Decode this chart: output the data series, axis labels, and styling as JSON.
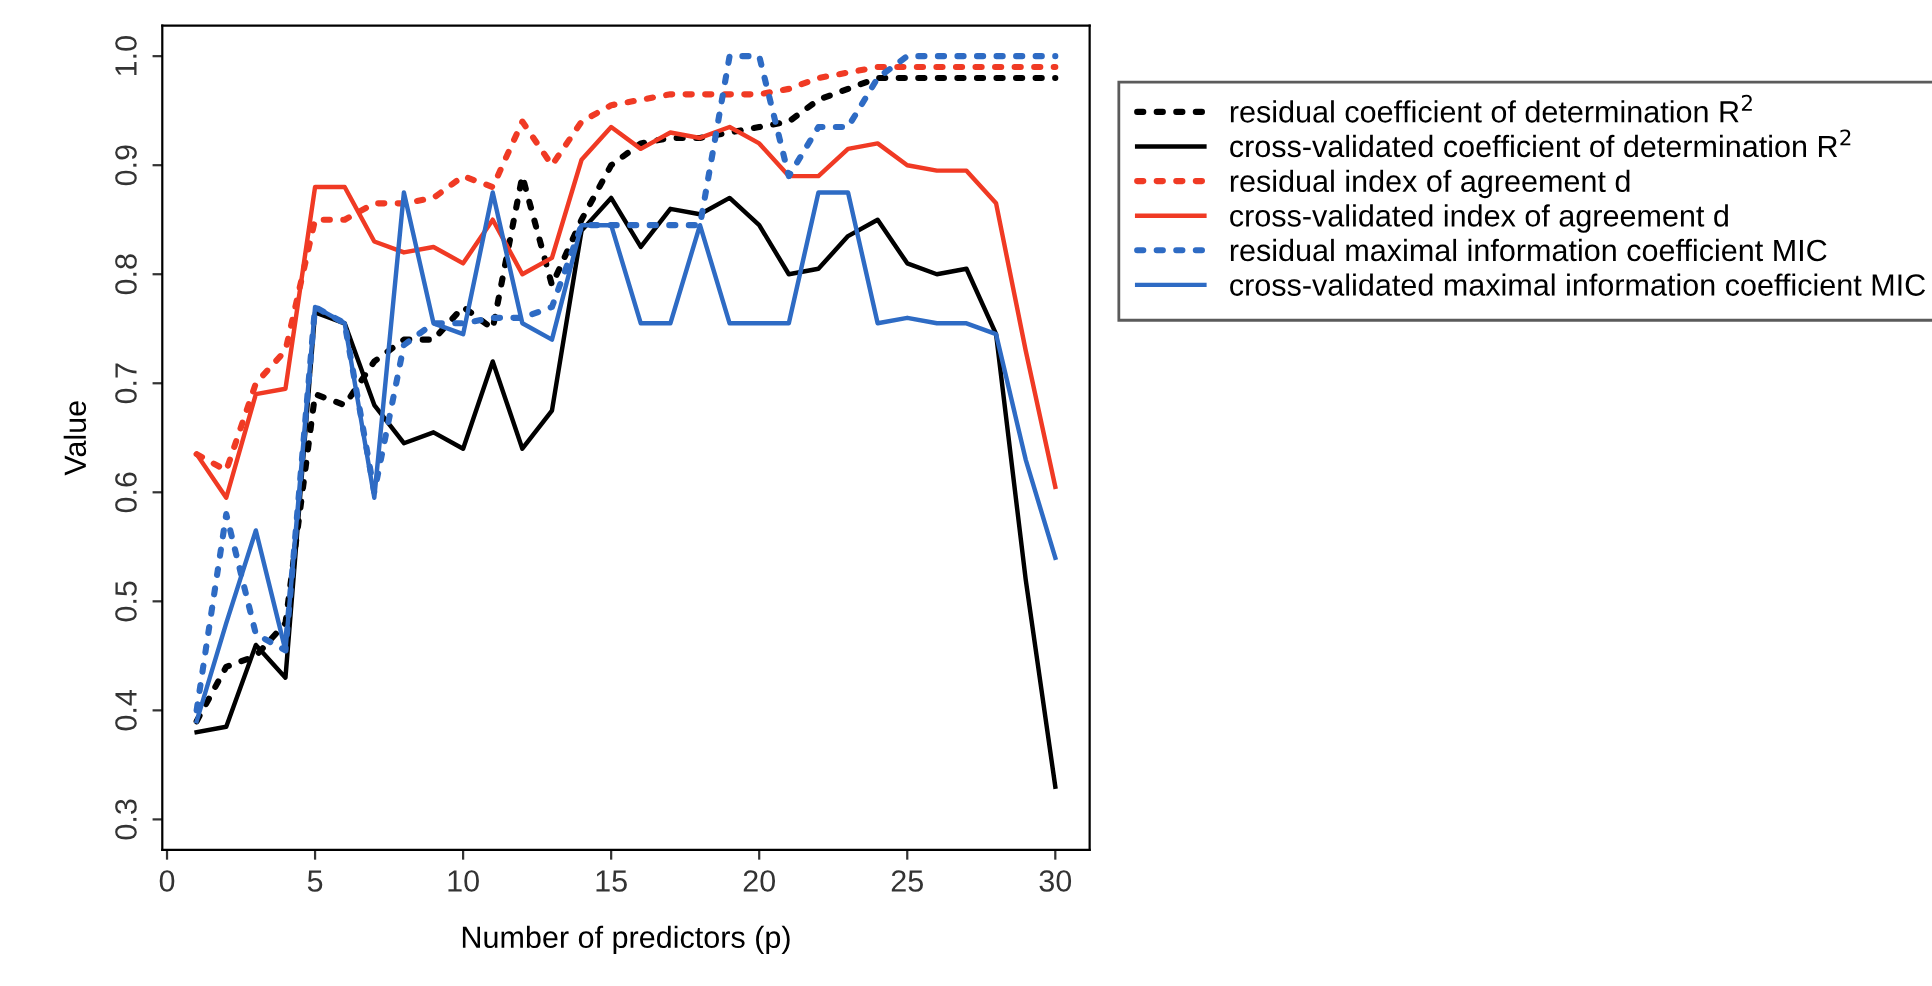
{
  "chart_data": {
    "type": "line",
    "xlabel": "Number of predictors (p)",
    "ylabel": "Value",
    "x": [
      1,
      2,
      3,
      4,
      5,
      6,
      7,
      8,
      9,
      10,
      11,
      12,
      13,
      14,
      15,
      16,
      17,
      18,
      19,
      20,
      21,
      22,
      23,
      24,
      25,
      26,
      27,
      28,
      29,
      30
    ],
    "xlim": [
      -0.16,
      31.16
    ],
    "xticks": [
      0,
      5,
      10,
      15,
      20,
      25,
      30
    ],
    "ylim": [
      0.272,
      1.028
    ],
    "yticks": [
      0.3,
      0.4,
      0.5,
      0.6,
      0.7,
      0.8,
      0.9,
      {
        "value": 1,
        "label": "1.0"
      }
    ],
    "grid": false,
    "legend": "right",
    "marker": "none",
    "series": [
      {
        "name": "residual coefficient of determination R$^{2}$",
        "color": "#000000",
        "line_style": "dotted",
        "values": [
          0.39,
          0.44,
          0.45,
          0.48,
          0.69,
          0.68,
          0.72,
          0.74,
          0.74,
          0.77,
          0.75,
          0.89,
          0.79,
          0.85,
          0.9,
          0.92,
          0.925,
          0.925,
          0.93,
          0.935,
          0.94,
          0.96,
          0.97,
          0.98,
          0.98,
          0.98,
          0.98,
          0.98,
          0.98,
          0.98
        ]
      },
      {
        "name": "cross-validated coefficient of determination R$^{2}$",
        "color": "#000000",
        "line_style": "solid",
        "values": [
          0.38,
          0.385,
          0.46,
          0.43,
          0.765,
          0.755,
          0.68,
          0.645,
          0.655,
          0.64,
          0.72,
          0.64,
          0.675,
          0.84,
          0.87,
          0.825,
          0.86,
          0.855,
          0.87,
          0.845,
          0.8,
          0.805,
          0.835,
          0.85,
          0.81,
          0.8,
          0.805,
          0.745,
          0.52,
          0.33
        ]
      },
      {
        "name": "residual index of agreement d",
        "color": "#f03a24",
        "line_style": "dotted",
        "values": [
          0.635,
          0.62,
          0.7,
          0.73,
          0.85,
          0.85,
          0.865,
          0.865,
          0.87,
          0.89,
          0.88,
          0.94,
          0.9,
          0.94,
          0.955,
          0.96,
          0.965,
          0.965,
          0.965,
          0.965,
          0.97,
          0.98,
          0.985,
          0.99,
          0.99,
          0.99,
          0.99,
          0.99,
          0.99,
          0.99
        ]
      },
      {
        "name": "cross-validated index of agreement d",
        "color": "#f03a24",
        "line_style": "solid",
        "values": [
          0.635,
          0.595,
          0.69,
          0.695,
          0.88,
          0.88,
          0.83,
          0.82,
          0.825,
          0.81,
          0.85,
          0.8,
          0.815,
          0.905,
          0.935,
          0.915,
          0.93,
          0.925,
          0.935,
          0.92,
          0.89,
          0.89,
          0.915,
          0.92,
          0.9,
          0.895,
          0.895,
          0.865,
          0.73,
          0.605
        ]
      },
      {
        "name": "residual maximal information coefficient MIC",
        "color": "#2e6bc4",
        "line_style": "dotted",
        "values": [
          0.4,
          0.58,
          0.47,
          0.455,
          0.77,
          0.755,
          0.6,
          0.735,
          0.755,
          0.755,
          0.76,
          0.76,
          0.77,
          0.845,
          0.845,
          0.845,
          0.845,
          0.845,
          1.0,
          1.0,
          0.89,
          0.935,
          0.935,
          0.98,
          1.0,
          1.0,
          1.0,
          1.0,
          1.0,
          1.0
        ]
      },
      {
        "name": "cross-validated maximal information coefficient MIC",
        "color": "#2e6bc4",
        "line_style": "solid",
        "values": [
          0.39,
          0.48,
          0.565,
          0.455,
          0.77,
          0.755,
          0.595,
          0.875,
          0.755,
          0.745,
          0.875,
          0.755,
          0.74,
          0.845,
          0.845,
          0.755,
          0.755,
          0.845,
          0.755,
          0.755,
          0.755,
          0.875,
          0.875,
          0.755,
          0.76,
          0.755,
          0.755,
          0.745,
          0.63,
          0.54
        ]
      }
    ]
  }
}
